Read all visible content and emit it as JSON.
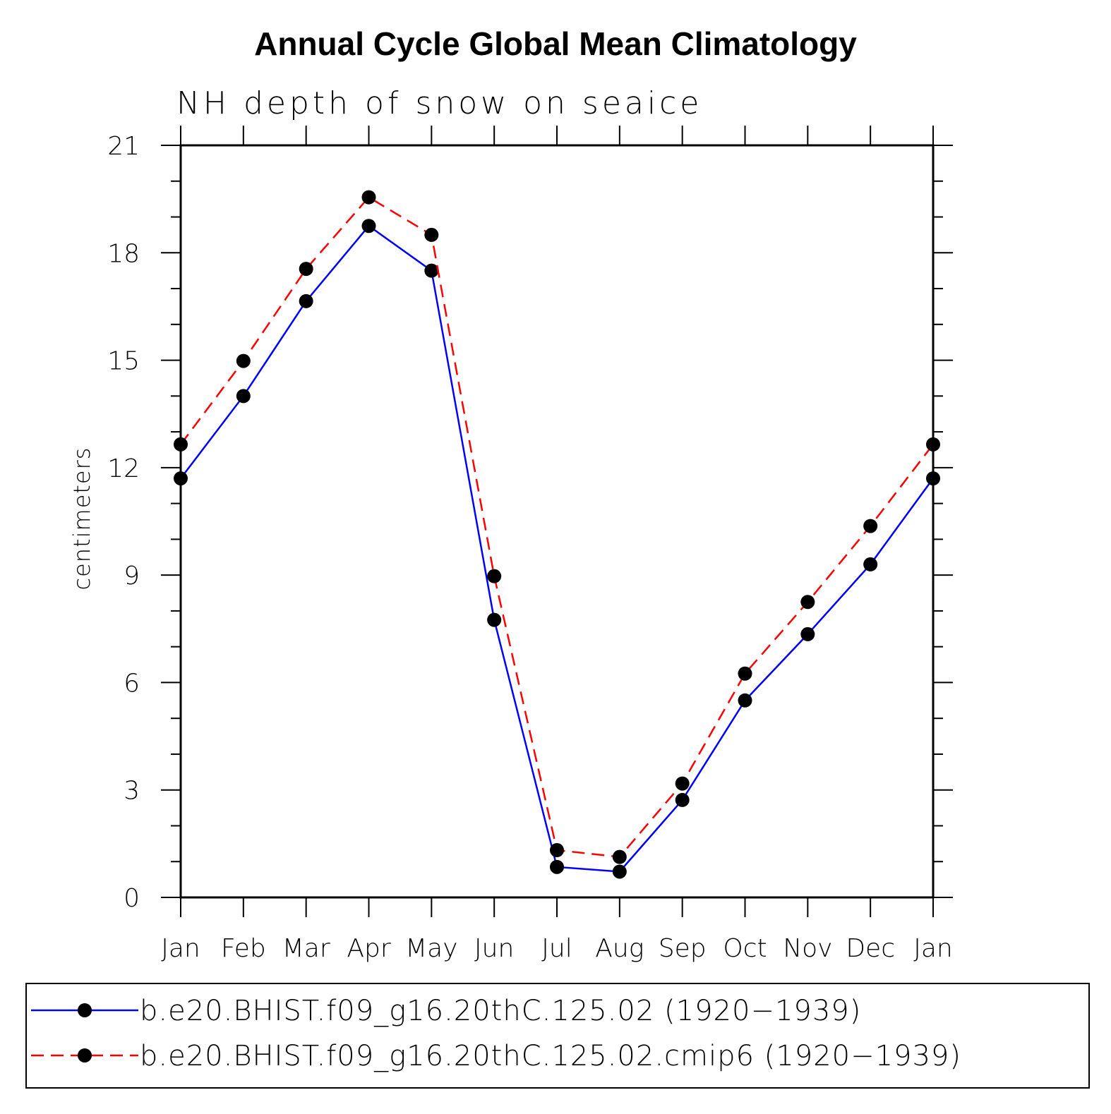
{
  "chart_data": {
    "type": "line",
    "title": "Annual Cycle Global Mean Climatology",
    "subtitle": "NH depth of snow on seaice",
    "xlabel": "",
    "ylabel": "centimeters",
    "categories": [
      "Jan",
      "Feb",
      "Mar",
      "Apr",
      "May",
      "Jun",
      "Jul",
      "Aug",
      "Sep",
      "Oct",
      "Nov",
      "Dec",
      "Jan"
    ],
    "ylim": [
      0,
      21
    ],
    "yticks": [
      "0",
      "3",
      "6",
      "9",
      "12",
      "15",
      "18",
      "21"
    ],
    "grid": false,
    "legend_position": "bottom",
    "series": [
      {
        "name": "b.e20.BHIST.f09_g16.20thC.125.02 (1920−1939)",
        "color": "#0000ff",
        "line_style": "solid",
        "marker": "filled-circle",
        "marker_color": "#000000",
        "values": [
          11.7,
          14.0,
          16.65,
          18.75,
          17.5,
          7.75,
          0.85,
          0.72,
          2.72,
          5.5,
          7.35,
          9.3,
          11.7
        ]
      },
      {
        "name": "b.e20.BHIST.f09_g16.20thC.125.02.cmip6 (1920−1939)",
        "color": "#ff0000",
        "line_style": "dashed",
        "marker": "filled-circle",
        "marker_color": "#000000",
        "values": [
          12.65,
          14.98,
          17.55,
          19.55,
          18.5,
          8.97,
          1.32,
          1.13,
          3.18,
          6.25,
          8.25,
          10.37,
          12.65
        ]
      }
    ]
  }
}
